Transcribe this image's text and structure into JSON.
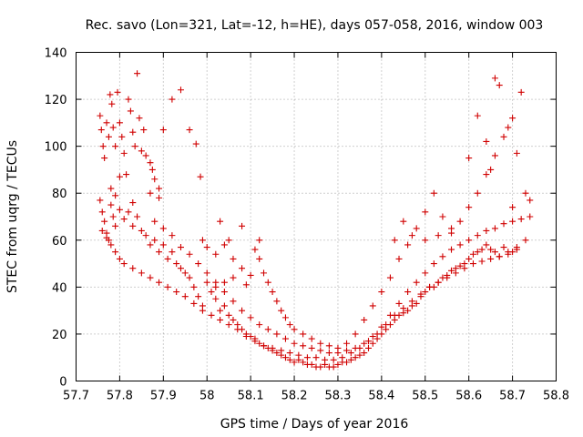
{
  "chart_data": {
    "type": "scatter",
    "title": "Rec. savo (Lon=321, Lat=-12, h=HE), days 057-058, 2016, window 003",
    "xlabel": "GPS time / Days of year 2016",
    "ylabel": "STEC from uqrg / TECUs",
    "xlim": [
      57.7,
      58.8
    ],
    "ylim": [
      0,
      140
    ],
    "xticks": [
      "57.7",
      "57.8",
      "57.9",
      "58",
      "58.1",
      "58.2",
      "58.3",
      "58.4",
      "58.5",
      "58.6",
      "58.7",
      "58.8"
    ],
    "yticks": [
      "0",
      "20",
      "40",
      "60",
      "80",
      "100",
      "120",
      "140"
    ],
    "grid": true,
    "marker": "plus",
    "color": "#d00000",
    "series": [
      {
        "points": [
          [
            57.755,
            113
          ],
          [
            57.758,
            107
          ],
          [
            57.762,
            100
          ],
          [
            57.765,
            95
          ],
          [
            57.77,
            110
          ],
          [
            57.775,
            104
          ],
          [
            57.778,
            122
          ],
          [
            57.782,
            118
          ],
          [
            57.785,
            108
          ],
          [
            57.79,
            100
          ],
          [
            57.795,
            123
          ],
          [
            57.8,
            110
          ],
          [
            57.805,
            104
          ],
          [
            57.81,
            97
          ],
          [
            57.815,
            88
          ],
          [
            57.82,
            120
          ],
          [
            57.825,
            115
          ],
          [
            57.83,
            106
          ],
          [
            57.835,
            100
          ],
          [
            57.84,
            131
          ],
          [
            57.845,
            112
          ],
          [
            57.85,
            98
          ],
          [
            57.855,
            107
          ],
          [
            57.86,
            96
          ],
          [
            57.87,
            93
          ],
          [
            57.875,
            90
          ],
          [
            57.88,
            86
          ],
          [
            57.89,
            82
          ],
          [
            57.9,
            107
          ],
          [
            57.92,
            120
          ],
          [
            57.94,
            124
          ],
          [
            57.96,
            107
          ],
          [
            57.975,
            101
          ],
          [
            57.985,
            87
          ],
          [
            57.8,
            87
          ],
          [
            57.78,
            82
          ],
          [
            57.79,
            79
          ],
          [
            57.83,
            76
          ],
          [
            57.87,
            80
          ],
          [
            57.89,
            78
          ]
        ]
      },
      {
        "points": [
          [
            57.755,
            77
          ],
          [
            57.76,
            72
          ],
          [
            57.765,
            68
          ],
          [
            57.77,
            63
          ],
          [
            57.775,
            60
          ],
          [
            57.78,
            75
          ],
          [
            57.785,
            70
          ],
          [
            57.79,
            66
          ],
          [
            57.8,
            73
          ],
          [
            57.81,
            69
          ],
          [
            57.82,
            72
          ],
          [
            57.83,
            66
          ],
          [
            57.84,
            70
          ],
          [
            57.85,
            64
          ],
          [
            57.86,
            62
          ],
          [
            57.87,
            58
          ],
          [
            57.88,
            60
          ],
          [
            57.89,
            55
          ],
          [
            57.9,
            58
          ],
          [
            57.91,
            52
          ],
          [
            57.92,
            55
          ],
          [
            57.93,
            50
          ],
          [
            57.94,
            48
          ],
          [
            57.95,
            46
          ],
          [
            57.96,
            44
          ],
          [
            57.97,
            40
          ],
          [
            57.98,
            36
          ],
          [
            57.99,
            32
          ],
          [
            58.0,
            42
          ],
          [
            58.01,
            38
          ],
          [
            58.02,
            35
          ],
          [
            58.03,
            30
          ],
          [
            58.04,
            32
          ],
          [
            58.05,
            28
          ],
          [
            58.06,
            26
          ],
          [
            58.07,
            24
          ],
          [
            58.08,
            22
          ],
          [
            58.09,
            20
          ],
          [
            58.1,
            19
          ],
          [
            58.11,
            18
          ],
          [
            58.12,
            16
          ],
          [
            58.13,
            15
          ],
          [
            58.14,
            14
          ],
          [
            58.15,
            13
          ],
          [
            58.16,
            12
          ],
          [
            58.17,
            11
          ],
          [
            58.18,
            10
          ],
          [
            58.19,
            9
          ],
          [
            58.2,
            8
          ],
          [
            58.21,
            9
          ],
          [
            58.22,
            8
          ],
          [
            58.23,
            7
          ],
          [
            58.24,
            7
          ],
          [
            58.25,
            6
          ],
          [
            58.26,
            6
          ],
          [
            58.27,
            7
          ],
          [
            58.28,
            6
          ],
          [
            58.29,
            6
          ],
          [
            58.3,
            7
          ],
          [
            58.31,
            8
          ],
          [
            58.32,
            8
          ],
          [
            58.33,
            9
          ],
          [
            58.34,
            10
          ],
          [
            58.35,
            11
          ],
          [
            58.36,
            12
          ],
          [
            58.37,
            14
          ],
          [
            58.38,
            16
          ],
          [
            58.39,
            18
          ],
          [
            58.4,
            20
          ],
          [
            58.41,
            22
          ],
          [
            58.42,
            24
          ],
          [
            58.43,
            26
          ],
          [
            58.44,
            28
          ],
          [
            58.45,
            29
          ],
          [
            58.46,
            30
          ],
          [
            58.47,
            32
          ],
          [
            58.48,
            33
          ],
          [
            58.49,
            36
          ],
          [
            58.5,
            38
          ],
          [
            58.51,
            40
          ],
          [
            58.52,
            40
          ],
          [
            58.53,
            42
          ],
          [
            58.54,
            44
          ],
          [
            58.55,
            45
          ],
          [
            58.56,
            47
          ],
          [
            58.57,
            48
          ],
          [
            58.58,
            49
          ],
          [
            58.59,
            50
          ],
          [
            58.6,
            52
          ],
          [
            58.61,
            54
          ],
          [
            58.62,
            55
          ],
          [
            58.63,
            56
          ],
          [
            58.64,
            58
          ],
          [
            58.65,
            56
          ],
          [
            58.66,
            55
          ],
          [
            58.67,
            53
          ],
          [
            58.68,
            57
          ],
          [
            58.69,
            54
          ],
          [
            58.7,
            55
          ],
          [
            58.71,
            56
          ]
        ]
      },
      {
        "points": [
          [
            57.76,
            64
          ],
          [
            57.77,
            61
          ],
          [
            57.78,
            58
          ],
          [
            57.79,
            55
          ],
          [
            57.8,
            52
          ],
          [
            57.81,
            50
          ],
          [
            57.83,
            48
          ],
          [
            57.85,
            46
          ],
          [
            57.87,
            44
          ],
          [
            57.89,
            42
          ],
          [
            57.91,
            40
          ],
          [
            57.93,
            38
          ],
          [
            57.95,
            36
          ],
          [
            57.97,
            33
          ],
          [
            57.99,
            30
          ],
          [
            58.01,
            28
          ],
          [
            58.03,
            26
          ],
          [
            58.05,
            24
          ],
          [
            58.07,
            22
          ],
          [
            58.09,
            19
          ],
          [
            58.11,
            17
          ],
          [
            58.13,
            15
          ],
          [
            58.15,
            14
          ],
          [
            58.17,
            13
          ],
          [
            58.19,
            12
          ],
          [
            58.21,
            11
          ],
          [
            58.23,
            10
          ],
          [
            58.25,
            10
          ],
          [
            58.27,
            9
          ],
          [
            58.29,
            9
          ],
          [
            58.31,
            10
          ],
          [
            58.33,
            12
          ],
          [
            58.35,
            14
          ],
          [
            58.37,
            17
          ],
          [
            58.39,
            20
          ],
          [
            58.41,
            24
          ],
          [
            58.43,
            28
          ],
          [
            58.45,
            31
          ],
          [
            58.47,
            34
          ],
          [
            58.49,
            37
          ],
          [
            58.51,
            40
          ],
          [
            58.53,
            42
          ],
          [
            58.55,
            44
          ],
          [
            58.57,
            46
          ],
          [
            58.59,
            48
          ],
          [
            58.61,
            50
          ],
          [
            58.63,
            51
          ],
          [
            58.65,
            52
          ],
          [
            58.67,
            53
          ],
          [
            58.69,
            55
          ],
          [
            58.71,
            57
          ],
          [
            58.73,
            60
          ],
          [
            57.88,
            68
          ],
          [
            57.9,
            65
          ],
          [
            57.92,
            62
          ],
          [
            57.94,
            57
          ],
          [
            57.96,
            54
          ],
          [
            57.98,
            50
          ],
          [
            58.0,
            46
          ],
          [
            58.02,
            42
          ],
          [
            58.04,
            38
          ],
          [
            58.06,
            34
          ],
          [
            58.08,
            30
          ],
          [
            58.1,
            27
          ],
          [
            58.12,
            24
          ],
          [
            58.14,
            22
          ],
          [
            58.16,
            20
          ],
          [
            58.18,
            18
          ],
          [
            58.2,
            16
          ],
          [
            58.22,
            15
          ],
          [
            58.24,
            14
          ],
          [
            58.26,
            13
          ],
          [
            58.28,
            12
          ],
          [
            58.3,
            12
          ],
          [
            58.32,
            13
          ],
          [
            58.34,
            14
          ],
          [
            58.36,
            16
          ],
          [
            58.38,
            19
          ],
          [
            58.4,
            23
          ],
          [
            58.42,
            28
          ],
          [
            58.44,
            33
          ],
          [
            58.46,
            38
          ],
          [
            58.48,
            42
          ],
          [
            58.5,
            46
          ],
          [
            58.52,
            50
          ],
          [
            58.54,
            53
          ],
          [
            58.56,
            56
          ],
          [
            58.58,
            58
          ],
          [
            58.6,
            60
          ],
          [
            58.62,
            62
          ],
          [
            58.64,
            64
          ],
          [
            58.66,
            65
          ],
          [
            58.68,
            67
          ],
          [
            58.7,
            68
          ],
          [
            58.72,
            69
          ],
          [
            58.74,
            70
          ]
        ]
      },
      {
        "points": [
          [
            57.99,
            60
          ],
          [
            58.0,
            57
          ],
          [
            58.02,
            54
          ],
          [
            58.04,
            58
          ],
          [
            58.06,
            52
          ],
          [
            58.08,
            48
          ],
          [
            58.1,
            45
          ],
          [
            58.11,
            56
          ],
          [
            58.12,
            52
          ],
          [
            58.13,
            46
          ],
          [
            58.14,
            42
          ],
          [
            58.15,
            38
          ],
          [
            58.16,
            34
          ],
          [
            58.17,
            30
          ],
          [
            58.18,
            27
          ],
          [
            58.19,
            24
          ],
          [
            58.2,
            22
          ],
          [
            58.22,
            20
          ],
          [
            58.24,
            18
          ],
          [
            58.26,
            16
          ],
          [
            58.28,
            15
          ],
          [
            58.3,
            14
          ],
          [
            58.32,
            16
          ],
          [
            58.34,
            20
          ],
          [
            58.36,
            26
          ],
          [
            58.38,
            32
          ],
          [
            58.4,
            38
          ],
          [
            58.42,
            44
          ],
          [
            58.44,
            52
          ],
          [
            58.46,
            58
          ],
          [
            58.48,
            65
          ],
          [
            58.5,
            72
          ],
          [
            58.52,
            80
          ],
          [
            58.54,
            70
          ],
          [
            58.56,
            63
          ],
          [
            58.58,
            68
          ],
          [
            58.6,
            74
          ],
          [
            58.62,
            80
          ],
          [
            58.64,
            88
          ],
          [
            58.66,
            96
          ],
          [
            58.68,
            104
          ],
          [
            58.7,
            112
          ],
          [
            58.72,
            123
          ],
          [
            58.66,
            129
          ],
          [
            58.67,
            126
          ],
          [
            58.69,
            108
          ],
          [
            58.71,
            97
          ],
          [
            58.73,
            80
          ],
          [
            58.6,
            95
          ],
          [
            58.62,
            113
          ],
          [
            58.64,
            102
          ],
          [
            58.65,
            90
          ],
          [
            58.7,
            74
          ],
          [
            58.74,
            77
          ],
          [
            58.56,
            65
          ],
          [
            58.53,
            62
          ],
          [
            58.5,
            60
          ],
          [
            58.47,
            62
          ],
          [
            58.45,
            68
          ],
          [
            58.43,
            60
          ],
          [
            58.08,
            66
          ],
          [
            58.06,
            44
          ],
          [
            58.04,
            42
          ],
          [
            58.02,
            40
          ],
          [
            58.03,
            68
          ],
          [
            58.05,
            60
          ],
          [
            58.09,
            41
          ],
          [
            58.12,
            60
          ]
        ]
      }
    ]
  }
}
